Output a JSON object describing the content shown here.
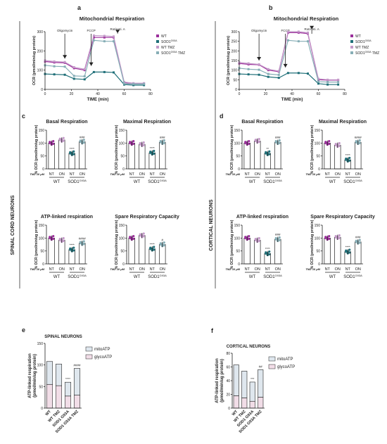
{
  "colors": {
    "wt": "#9b2f9b",
    "sod": "#1f6f78",
    "wt_tmz": "#c49ac9",
    "sod_tmz": "#86aeb6",
    "mito": "#dfe7ee",
    "glyco": "#f1dde7",
    "axis": "#222222"
  },
  "side_labels": {
    "spinal": "SPINAL CORD NEURONS",
    "cortical": "CORTICAL NEURONS"
  },
  "panels": {
    "a": {
      "letter": "a",
      "title": "Mitochondrial Respiration",
      "ylabel": "OCR (pmol/min/ug protein)",
      "xlabel": "TIME (min)",
      "annotations": [
        "Oligomycin",
        "FCCP",
        "Rot/Anti. A"
      ],
      "legend": [
        "WT",
        "SOD1",
        "WT TMZ",
        "SOD1",
        "TMZ"
      ],
      "legend_sup": "G93A"
    },
    "b": {
      "letter": "b",
      "title": "Mitochondrial Respiration",
      "ylabel": "OCR (pmol/min/ug protein)",
      "xlabel": "TIME (min)",
      "annotations": [
        "Oligomycin",
        "FCCP",
        "Rot/Anti. A"
      ],
      "legend": [
        "WT",
        "SOD1",
        "WT TMZ",
        "SOD1",
        "TMZ"
      ],
      "legend_sup": "G93A"
    },
    "c": {
      "letter": "c"
    },
    "d": {
      "letter": "d"
    },
    "e": {
      "letter": "e"
    },
    "f": {
      "letter": "f"
    }
  },
  "group_labels": {
    "tmz": "TMZ 10 μM",
    "nt": "NT",
    "on": "ON",
    "wt": "WT",
    "sod": "SOD1",
    "sod_sup": "G93A"
  },
  "ylabel_pct": "% OCR (pmol/min/ug protein)",
  "bar_e_labels": {
    "title": "SPINAL NEURONS",
    "ylabel1": "ATP-linked respiration",
    "ylabel2": "(pmol/min/ug protein)"
  },
  "bar_f_labels": {
    "title": "CORTICAL NEURONS",
    "ylabel1": "ATP-linked respiration",
    "ylabel2": "(pmol/min/ug protein)"
  },
  "legend_ef": [
    "mitoATP",
    "glycoATP"
  ],
  "chart_data": [
    {
      "id": "a",
      "type": "line",
      "x": [
        0,
        7,
        15,
        22,
        30,
        37,
        45,
        52,
        60,
        67,
        75
      ],
      "xlim": [
        0,
        80
      ],
      "ylim": [
        0,
        300
      ],
      "xticks": [
        0,
        20,
        40,
        60,
        80
      ],
      "yticks": [
        0,
        100,
        200,
        300
      ],
      "series": [
        {
          "name": "WT",
          "values": [
            145,
            140,
            138,
            110,
            100,
            270,
            270,
            270,
            35,
            30,
            30
          ]
        },
        {
          "name": "SOD1 G93A",
          "values": [
            80,
            78,
            76,
            55,
            52,
            90,
            90,
            88,
            25,
            22,
            22
          ]
        },
        {
          "name": "WT TMZ",
          "values": [
            150,
            145,
            142,
            115,
            105,
            280,
            278,
            275,
            38,
            32,
            32
          ]
        },
        {
          "name": "SOD1 G93A TMZ",
          "values": [
            125,
            120,
            118,
            70,
            68,
            255,
            250,
            250,
            30,
            28,
            28
          ]
        }
      ]
    },
    {
      "id": "b",
      "type": "line",
      "x": [
        0,
        7,
        15,
        22,
        30,
        37,
        45,
        52,
        60,
        67,
        75
      ],
      "xlim": [
        0,
        80
      ],
      "ylim": [
        0,
        300
      ],
      "xticks": [
        0,
        20,
        40,
        60,
        80
      ],
      "yticks": [
        0,
        50,
        100,
        150,
        200,
        250,
        300
      ],
      "series": [
        {
          "name": "WT",
          "values": [
            135,
            130,
            128,
            100,
            92,
            295,
            295,
            290,
            50,
            48,
            48
          ]
        },
        {
          "name": "SOD1 G93A",
          "values": [
            80,
            78,
            76,
            65,
            60,
            85,
            85,
            82,
            30,
            25,
            25
          ]
        },
        {
          "name": "WT TMZ",
          "values": [
            140,
            135,
            130,
            105,
            95,
            300,
            300,
            295,
            55,
            50,
            50
          ]
        },
        {
          "name": "SOD1 G93A TMZ",
          "values": [
            110,
            105,
            102,
            80,
            75,
            255,
            250,
            250,
            40,
            38,
            38
          ]
        }
      ]
    },
    {
      "id": "c1",
      "type": "bar",
      "title": "Basal Respiration",
      "ylim": [
        0,
        150
      ],
      "yticks": [
        0,
        50,
        100,
        150
      ],
      "categories": [
        "WT NT",
        "WT ON",
        "SOD1 NT",
        "SOD1 ON"
      ],
      "values": [
        100,
        112,
        60,
        105
      ],
      "sig": [
        "",
        "",
        "****",
        "###"
      ]
    },
    {
      "id": "c2",
      "type": "bar",
      "title": "Maximal Respiration",
      "ylim": [
        0,
        150
      ],
      "yticks": [
        0,
        50,
        100,
        150
      ],
      "categories": [
        "WT NT",
        "WT ON",
        "SOD1 NT",
        "SOD1 ON"
      ],
      "values": [
        100,
        95,
        62,
        103
      ],
      "sig": [
        "",
        "",
        "****",
        "###"
      ]
    },
    {
      "id": "c3",
      "type": "bar",
      "title": "ATP-linked respiration",
      "ylim": [
        0,
        150
      ],
      "yticks": [
        0,
        50,
        100,
        150
      ],
      "categories": [
        "WT NT",
        "WT ON",
        "SOD1 NT",
        "SOD1 ON"
      ],
      "values": [
        100,
        92,
        55,
        80
      ],
      "sig": [
        "",
        "",
        "****",
        "####"
      ]
    },
    {
      "id": "c4",
      "type": "bar",
      "title": "Spare Respiratory Capacity",
      "ylim": [
        0,
        150
      ],
      "yticks": [
        0,
        50,
        100,
        150
      ],
      "categories": [
        "WT NT",
        "WT ON",
        "SOD1 NT",
        "SOD1 ON"
      ],
      "values": [
        100,
        110,
        58,
        75
      ],
      "sig": [
        "",
        "",
        "****",
        "#"
      ]
    },
    {
      "id": "d1",
      "type": "bar",
      "title": "Basal Respiration",
      "ylim": [
        0,
        150
      ],
      "yticks": [
        0,
        50,
        100,
        150
      ],
      "categories": [
        "WT NT",
        "WT ON",
        "SOD1 NT",
        "SOD1 ON"
      ],
      "values": [
        100,
        108,
        60,
        103
      ],
      "sig": [
        "",
        "",
        "**",
        "###"
      ]
    },
    {
      "id": "d2",
      "type": "bar",
      "title": "Maximal Respiration",
      "ylim": [
        0,
        150
      ],
      "yticks": [
        0,
        50,
        100,
        150
      ],
      "categories": [
        "WT NT",
        "WT ON",
        "SOD1 NT",
        "SOD1 ON"
      ],
      "values": [
        100,
        92,
        35,
        103
      ],
      "sig": [
        "",
        "",
        "****",
        "####"
      ]
    },
    {
      "id": "d3",
      "type": "bar",
      "title": "ATP-linked respiration",
      "ylim": [
        0,
        150
      ],
      "yticks": [
        0,
        50,
        100,
        150
      ],
      "categories": [
        "WT NT",
        "WT ON",
        "SOD1 NT",
        "SOD1 ON"
      ],
      "values": [
        100,
        92,
        40,
        95
      ],
      "sig": [
        "",
        "",
        "****",
        "###"
      ]
    },
    {
      "id": "d4",
      "type": "bar",
      "title": "Spare Respiratory Capacity",
      "ylim": [
        0,
        150
      ],
      "yticks": [
        0,
        50,
        100,
        150
      ],
      "categories": [
        "WT NT",
        "WT ON",
        "SOD1 NT",
        "SOD1 ON"
      ],
      "values": [
        100,
        103,
        47,
        85
      ],
      "sig": [
        "",
        "",
        "****",
        "###"
      ]
    },
    {
      "id": "e",
      "type": "bar",
      "stacked": true,
      "ylim": [
        0,
        150
      ],
      "yticks": [
        0,
        50,
        100,
        150
      ],
      "categories": [
        "WT",
        "WT TMZ",
        "SOD1 G93A",
        "SOD1 G93A TMZ"
      ],
      "series": [
        {
          "name": "glycoATP",
          "values": [
            55,
            52,
            28,
            30
          ]
        },
        {
          "name": "mitoATP",
          "values": [
            53,
            50,
            32,
            62
          ]
        }
      ],
      "sig": [
        "",
        "",
        "****",
        "####"
      ]
    },
    {
      "id": "f",
      "type": "bar",
      "stacked": true,
      "ylim": [
        0,
        80
      ],
      "yticks": [
        0,
        20,
        40,
        60,
        80
      ],
      "categories": [
        "WT",
        "WT TMZ",
        "SOD1 G93A",
        "SOD1 G93A TMZ"
      ],
      "series": [
        {
          "name": "glycoATP",
          "values": [
            18,
            15,
            10,
            16
          ]
        },
        {
          "name": "mitoATP",
          "values": [
            45,
            39,
            28,
            40
          ]
        }
      ],
      "sig": [
        "",
        "",
        "***",
        "##"
      ]
    }
  ]
}
